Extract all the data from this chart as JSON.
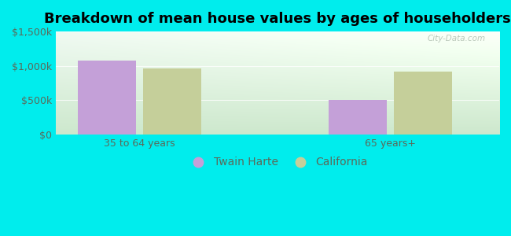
{
  "title": "Breakdown of mean house values by ages of householders",
  "categories": [
    "35 to 64 years",
    "65 years+"
  ],
  "series": {
    "Twain Harte": [
      1075000,
      500000
    ],
    "California": [
      960000,
      920000
    ]
  },
  "bar_colors": {
    "Twain Harte": "#c4a0d8",
    "California": "#c5cf9a"
  },
  "ylim": [
    0,
    1500000
  ],
  "yticks": [
    0,
    500000,
    1000000,
    1500000
  ],
  "ytick_labels": [
    "$0",
    "$500k",
    "$1,000k",
    "$1,500k"
  ],
  "background_color": "#00eded",
  "plot_bg_top_left": "#d8edda",
  "plot_bg_top_right": "#eaf5f0",
  "plot_bg_bottom_left": "#d0e8d0",
  "plot_bg_bottom_right": "#f0f8f0",
  "bar_width": 0.35,
  "title_fontsize": 13,
  "tick_fontsize": 9,
  "legend_fontsize": 10,
  "watermark": "City-Data.com",
  "group_positions": [
    0.5,
    2.0
  ]
}
